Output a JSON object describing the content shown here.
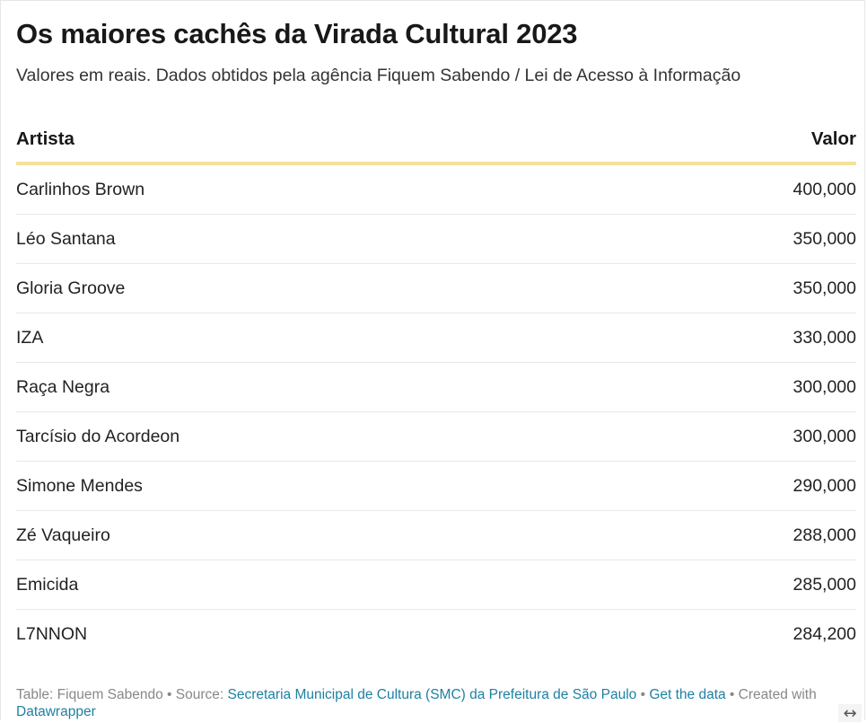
{
  "title": "Os maiores cachês da Virada Cultural 2023",
  "subtitle": "Valores em reais. Dados obtidos pela agência Fiquem Sabendo / Lei de Acesso à Informação",
  "chart_data": {
    "type": "table",
    "columns": [
      "Artista",
      "Valor"
    ],
    "rows": [
      {
        "artist": "Carlinhos Brown",
        "value": "400,000"
      },
      {
        "artist": "Léo Santana",
        "value": "350,000"
      },
      {
        "artist": "Gloria Groove",
        "value": "350,000"
      },
      {
        "artist": "IZA",
        "value": "330,000"
      },
      {
        "artist": "Raça Negra",
        "value": "300,000"
      },
      {
        "artist": "Tarcísio do Acordeon",
        "value": "300,000"
      },
      {
        "artist": "Simone Mendes",
        "value": "290,000"
      },
      {
        "artist": "Zé Vaqueiro",
        "value": "288,000"
      },
      {
        "artist": "Emicida",
        "value": "285,000"
      },
      {
        "artist": "L7NNON",
        "value": "284,200"
      }
    ]
  },
  "footer": {
    "table_credit": "Table: Fiquem Sabendo",
    "separator": " • ",
    "source_prefix": "Source: ",
    "source_link": "Secretaria Municipal de Cultura (SMC) da Prefeitura de São Paulo",
    "get_data_link": "Get the data",
    "created_with": "Created with ",
    "datawrapper_link": "Datawrapper"
  },
  "resize_handle_icon": "↔",
  "colors": {
    "header_rule": "#f5e29a",
    "link": "#1d81a2",
    "footer_text": "#888888"
  }
}
